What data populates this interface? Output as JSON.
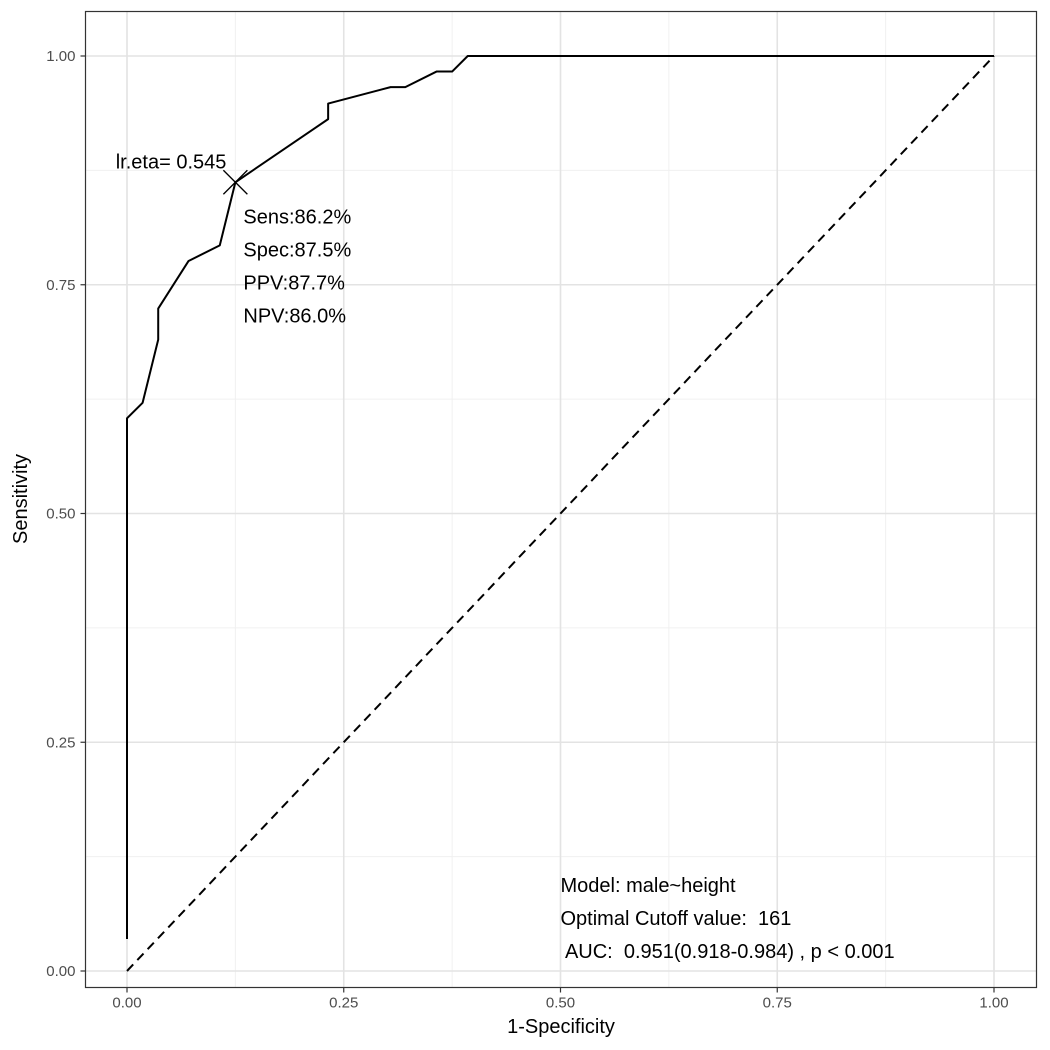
{
  "chart_data": {
    "type": "line",
    "xlabel": "1-Specificity",
    "ylabel": "Sensitivity",
    "xlim": [
      0,
      1
    ],
    "ylim": [
      0,
      1
    ],
    "x_ticks": [
      "0.00",
      "0.25",
      "0.50",
      "0.75",
      "1.00"
    ],
    "y_ticks": [
      "0.00",
      "0.25",
      "0.50",
      "0.75",
      "1.00"
    ],
    "grid": true,
    "series": [
      {
        "style": "solid",
        "x": [
          0.0,
          0.0,
          0.0,
          0.018,
          0.036,
          0.036,
          0.071,
          0.107,
          0.125,
          0.232,
          0.232,
          0.304,
          0.321,
          0.357,
          0.375,
          0.393,
          1.0
        ],
        "y": [
          0.035,
          0.604,
          0.604,
          0.621,
          0.69,
          0.724,
          0.776,
          0.793,
          0.862,
          0.931,
          0.948,
          0.966,
          0.966,
          0.983,
          0.983,
          1.0,
          1.0
        ]
      },
      {
        "style": "dashed",
        "x": [
          0,
          1
        ],
        "y": [
          0,
          1
        ]
      }
    ],
    "cutoff_point": {
      "x": 0.125,
      "y": 0.862,
      "label": "lr.eta= 0.545",
      "stats": [
        "Sens:86.2%",
        "Spec:87.5%",
        "PPV:87.7%",
        "NPV:86.0%"
      ]
    },
    "annotations": [
      "Model: male~height",
      "Optimal Cutoff value:  161",
      " AUC:  0.951(0.918-0.984) , p < 0.001"
    ]
  }
}
